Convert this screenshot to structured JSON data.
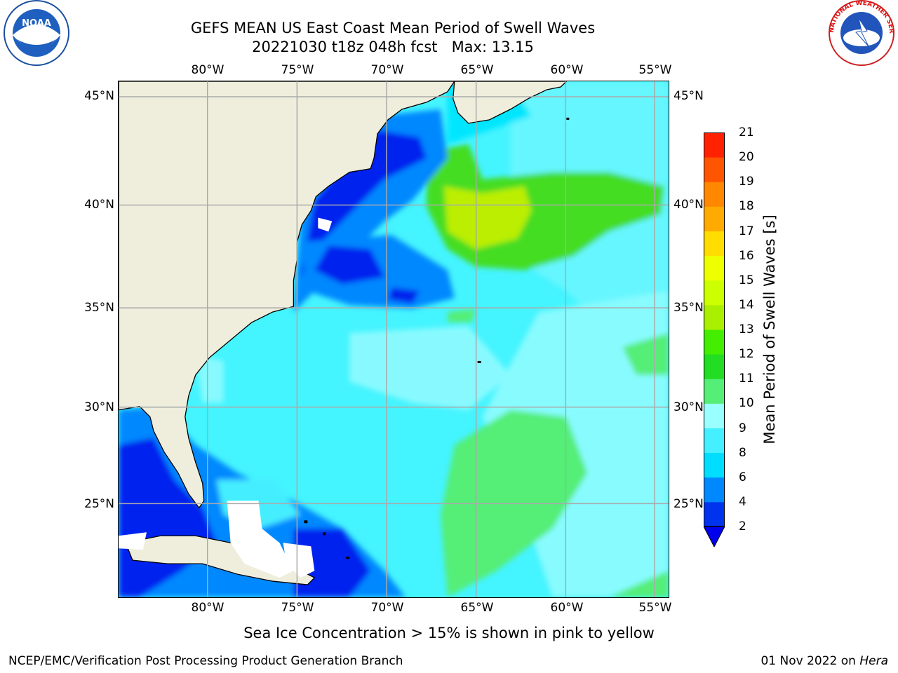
{
  "title": {
    "line1": "GEFS MEAN US East Coast Mean Period of Swell Waves",
    "line2": "20221030 t18z 048h fcst   Max: 13.15"
  },
  "axes": {
    "lon_labels": [
      "80°W",
      "75°W",
      "70°W",
      "65°W",
      "60°W",
      "55°W"
    ],
    "lat_labels": [
      "45°N",
      "40°N",
      "35°N",
      "30°N",
      "25°N"
    ]
  },
  "colorbar": {
    "label": "Mean Period of Swell Waves [s]",
    "ticks": [
      "2",
      "4",
      "6",
      "8",
      "9",
      "10",
      "11",
      "12",
      "13",
      "14",
      "15",
      "16",
      "17",
      "18",
      "19",
      "20",
      "21"
    ],
    "colors": [
      "#0033ee",
      "#0088ff",
      "#00ddff",
      "#44f0ff",
      "#99ffff",
      "#55ee77",
      "#22dd22",
      "#44ee00",
      "#aaee00",
      "#ccff00",
      "#eeff00",
      "#ffdd00",
      "#ffaa00",
      "#ff8800",
      "#ff5500",
      "#ff2200",
      "#ff0000"
    ],
    "under_color": "#0000ee"
  },
  "ice_note": "Sea Ice Concentration > 15% is shown in pink to yellow",
  "footer": {
    "left": "NCEP/EMC/Verification Post Processing Product Generation Branch",
    "right_date": "01 Nov 2022 on ",
    "right_host": "Hera"
  },
  "logos": {
    "noaa_text": "NOAA",
    "nws_text": "NATIONAL WEATHER SERVICE"
  },
  "colors": {
    "land": "#efeedd",
    "grid": "#aaaaaa"
  }
}
